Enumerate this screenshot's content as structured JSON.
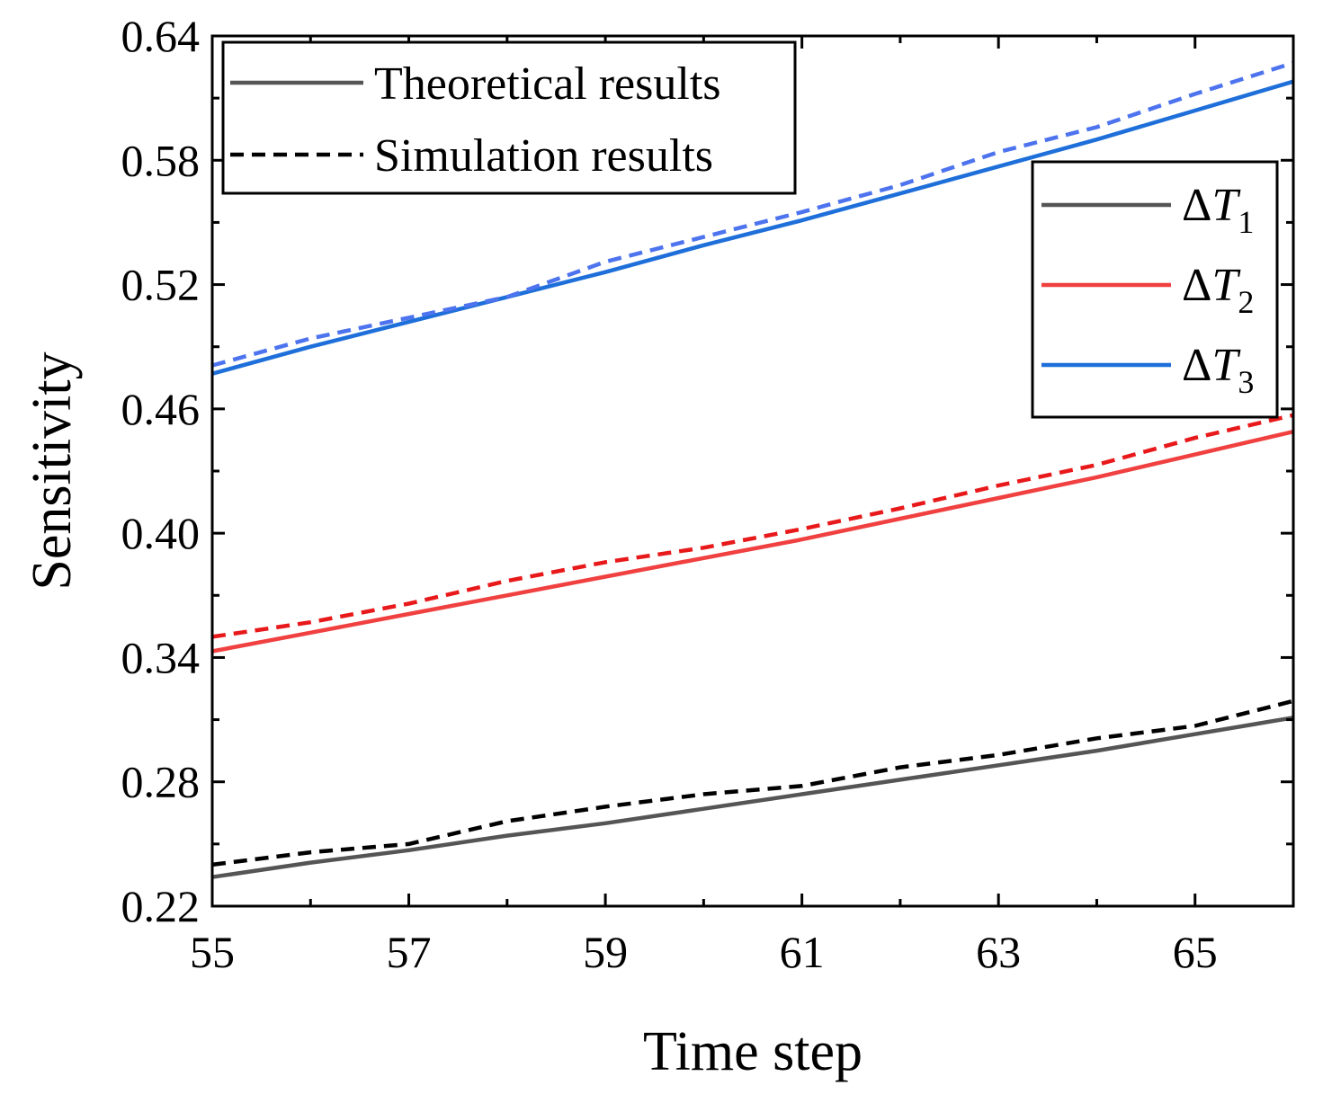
{
  "chart_data": {
    "type": "line",
    "title": "",
    "xlabel": "Time step",
    "ylabel": "Sensitivity",
    "xlim": [
      55,
      66
    ],
    "ylim": [
      0.22,
      0.64
    ],
    "x_ticks": [
      55,
      57,
      59,
      61,
      63,
      65
    ],
    "x_tick_labels": [
      "55",
      "57",
      "59",
      "61",
      "63",
      "65"
    ],
    "y_ticks": [
      0.22,
      0.28,
      0.34,
      0.4,
      0.46,
      0.52,
      0.58,
      0.64
    ],
    "y_tick_labels": [
      "0.22",
      "0.28",
      "0.34",
      "0.40",
      "0.46",
      "0.52",
      "0.58",
      "0.64"
    ],
    "grid": false,
    "x": [
      55,
      56,
      57,
      58,
      59,
      60,
      61,
      62,
      63,
      64,
      65,
      66
    ],
    "series": [
      {
        "name": "ΔT1 theoretical",
        "group": "T1",
        "style": "solid",
        "color": "#555555",
        "values": [
          0.234,
          0.241,
          0.247,
          0.254,
          0.26,
          0.267,
          0.274,
          0.281,
          0.288,
          0.295,
          0.303,
          0.311
        ]
      },
      {
        "name": "ΔT1 simulation",
        "group": "T1",
        "style": "dashed",
        "color": "#000000",
        "values": [
          0.24,
          0.246,
          0.25,
          0.261,
          0.268,
          0.274,
          0.278,
          0.287,
          0.293,
          0.301,
          0.307,
          0.319
        ]
      },
      {
        "name": "ΔT2 theoretical",
        "group": "T2",
        "style": "solid",
        "color": "#f04040",
        "values": [
          0.343,
          0.352,
          0.361,
          0.37,
          0.379,
          0.388,
          0.397,
          0.407,
          0.417,
          0.427,
          0.438,
          0.449
        ]
      },
      {
        "name": "ΔT2 simulation",
        "group": "T2",
        "style": "dashed",
        "color": "#e8191b",
        "values": [
          0.35,
          0.357,
          0.366,
          0.377,
          0.386,
          0.393,
          0.402,
          0.412,
          0.423,
          0.433,
          0.446,
          0.457
        ]
      },
      {
        "name": "ΔT3 theoretical",
        "group": "T3",
        "style": "solid",
        "color": "#1e6fd9",
        "values": [
          0.477,
          0.49,
          0.502,
          0.514,
          0.526,
          0.539,
          0.551,
          0.564,
          0.577,
          0.59,
          0.604,
          0.618
        ]
      },
      {
        "name": "ΔT3 simulation",
        "group": "T3",
        "style": "dashed",
        "color": "#4d74ee",
        "values": [
          0.481,
          0.494,
          0.504,
          0.514,
          0.531,
          0.543,
          0.555,
          0.568,
          0.584,
          0.596,
          0.612,
          0.627
        ]
      }
    ],
    "legend_style": {
      "position": "top-left",
      "items": [
        {
          "label": "Theoretical results",
          "style": "solid",
          "color": "#555555"
        },
        {
          "label": "Simulation results",
          "style": "dashed",
          "color": "#000000"
        }
      ]
    },
    "legend_series": {
      "position": "top-right",
      "items": [
        {
          "symbol": "ΔT",
          "subscript": "1",
          "color": "#555555"
        },
        {
          "symbol": "ΔT",
          "subscript": "2",
          "color": "#f04040"
        },
        {
          "symbol": "ΔT",
          "subscript": "3",
          "color": "#1e6fd9"
        }
      ]
    }
  }
}
